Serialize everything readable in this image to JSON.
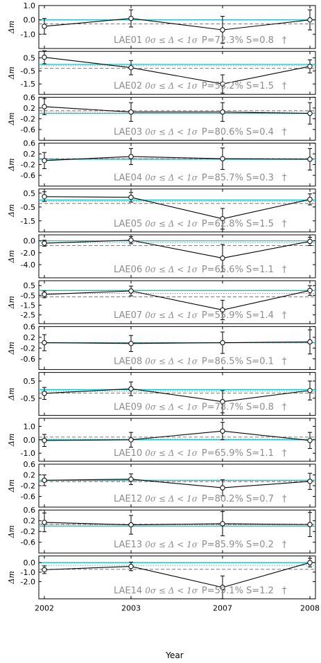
{
  "chart_data": {
    "type": "line",
    "xlabel": "Year",
    "ylabel": "Δm",
    "x_categories": [
      "2002",
      "2003",
      "2007",
      "2008"
    ],
    "colors": {
      "data": "#000000",
      "reference_line": "#00c8c8",
      "dotted_line": "#5f9ea0",
      "dashed_line": "#777777",
      "annotation": "#8c8c8c"
    },
    "panels": [
      {
        "name": "LAE01",
        "range_text": "0σ ≤ Δ < 1σ",
        "stats_text": "P=72.3% S=0.8",
        "dagger": "†",
        "ylim": [
          -2.0,
          1.0
        ],
        "yticks": [
          1.0,
          0.0,
          -1.0
        ],
        "ytick_labels": [
          "1.0",
          "0.0",
          "-1.0"
        ],
        "values": [
          -0.45,
          0.1,
          -0.7,
          0.0
        ],
        "errors": [
          0.55,
          0.6,
          0.95,
          0.7
        ],
        "ref_value": 0.0,
        "dotted_value": 0.0,
        "dashed_value": -0.28
      },
      {
        "name": "LAE02",
        "range_text": "0σ ≤ Δ < 1σ",
        "stats_text": "P=53.2% S=1.5",
        "dagger": "†",
        "ylim": [
          -2.3,
          1.0
        ],
        "yticks": [
          0.5,
          -0.5,
          -1.5
        ],
        "ytick_labels": [
          "0.5",
          "-0.5",
          "-1.5"
        ],
        "values": [
          0.55,
          -0.25,
          -1.5,
          -0.15
        ],
        "errors": [
          0.5,
          0.55,
          0.7,
          0.5
        ],
        "ref_value": 0.0,
        "dotted_value": -0.1,
        "dashed_value": -0.3
      },
      {
        "name": "LAE03",
        "range_text": "0σ ≤ Δ < 1σ",
        "stats_text": "P=80.6% S=0.4",
        "dagger": "†",
        "ylim": [
          -1.0,
          0.6
        ],
        "yticks": [
          0.6,
          0.2,
          -0.2,
          -0.6
        ],
        "ytick_labels": [
          "0.6",
          "0.2",
          "-0.2",
          "-0.6"
        ],
        "values": [
          0.25,
          0.05,
          0.05,
          0.0
        ],
        "errors": [
          0.3,
          0.35,
          0.35,
          0.4
        ],
        "ref_value": 0.0,
        "dotted_value": 0.05,
        "dashed_value": 0.1
      },
      {
        "name": "LAE04",
        "range_text": "0σ ≤ Δ < 1σ",
        "stats_text": "P=85.7% S=0.3",
        "dagger": "†",
        "ylim": [
          -1.0,
          0.6
        ],
        "yticks": [
          0.6,
          0.2,
          -0.2,
          -0.6
        ],
        "ytick_labels": [
          "0.6",
          "0.2",
          "-0.2",
          "-0.6"
        ],
        "values": [
          -0.05,
          0.1,
          0.02,
          0.0
        ],
        "errors": [
          0.3,
          0.3,
          0.4,
          0.4
        ],
        "ref_value": 0.0,
        "dotted_value": 0.02,
        "dashed_value": 0.02
      },
      {
        "name": "LAE05",
        "range_text": "0σ ≤ Δ < 1σ",
        "stats_text": "P=62.8% S=1.5",
        "dagger": "†",
        "ylim": [
          -2.3,
          0.8
        ],
        "yticks": [
          0.5,
          -0.5,
          -1.5
        ],
        "ytick_labels": [
          "0.5",
          "-0.5",
          "-1.5"
        ],
        "values": [
          0.25,
          0.2,
          -1.35,
          0.05
        ],
        "errors": [
          0.35,
          0.35,
          0.75,
          0.4
        ],
        "ref_value": 0.0,
        "dotted_value": -0.1,
        "dashed_value": -0.25
      },
      {
        "name": "LAE06",
        "range_text": "0σ ≤ Δ < 1σ",
        "stats_text": "P=65.6% S=1.1",
        "dagger": "†",
        "ylim": [
          -6.2,
          1.0
        ],
        "yticks": [
          0.0,
          -2.0,
          -4.0
        ],
        "ytick_labels": [
          "0.0",
          "-2.0",
          "-4.0"
        ],
        "values": [
          -0.4,
          0.1,
          -2.9,
          -0.1
        ],
        "errors": [
          0.5,
          0.6,
          2.3,
          0.7
        ],
        "ref_value": 0.0,
        "dotted_value": -0.3,
        "dashed_value": -0.8
      },
      {
        "name": "LAE07",
        "range_text": "0σ ≤ Δ < 1σ",
        "stats_text": "P=55.9% S=1.4",
        "dagger": "†",
        "ylim": [
          -3.4,
          1.0
        ],
        "yticks": [
          0.5,
          -0.5,
          -1.5,
          -2.5
        ],
        "ytick_labels": [
          "0.5",
          "-0.5",
          "-1.5",
          "-2.5"
        ],
        "values": [
          -0.4,
          -0.05,
          -2.0,
          0.0
        ],
        "errors": [
          0.35,
          0.5,
          1.0,
          0.5
        ],
        "ref_value": 0.0,
        "dotted_value": -0.3,
        "dashed_value": -0.65
      },
      {
        "name": "LAE08",
        "range_text": "0σ ≤ Δ < 1σ",
        "stats_text": "P=86.5% S=0.1",
        "dagger": "†",
        "ylim": [
          -1.0,
          0.6
        ],
        "yticks": [
          0.6,
          0.2,
          -0.2,
          -0.6
        ],
        "ytick_labels": [
          "0.6",
          "0.2",
          "-0.2",
          "-0.6"
        ],
        "values": [
          0.0,
          -0.03,
          0.0,
          0.03
        ],
        "errors": [
          0.3,
          0.3,
          0.4,
          0.45
        ],
        "ref_value": 0.0,
        "dotted_value": 0.0,
        "dashed_value": 0.0
      },
      {
        "name": "LAE09",
        "range_text": "0σ ≤ Δ < 1σ",
        "stats_text": "P=78.7% S=0.8",
        "dagger": "†",
        "ylim": [
          -1.5,
          1.0
        ],
        "yticks": [
          0.5,
          -0.5
        ],
        "ytick_labels": [
          "0.5",
          "-0.5"
        ],
        "values": [
          -0.22,
          0.05,
          -0.7,
          -0.05
        ],
        "errors": [
          0.35,
          0.4,
          0.65,
          0.55
        ],
        "ref_value": 0.0,
        "dotted_value": -0.1,
        "dashed_value": -0.2
      },
      {
        "name": "LAE10",
        "range_text": "0σ ≤ Δ < 1σ",
        "stats_text": "P=65.9% S=1.1",
        "dagger": "†",
        "ylim": [
          -1.6,
          1.6
        ],
        "yticks": [
          1.0,
          0.0,
          -1.0
        ],
        "ytick_labels": [
          "1.0",
          "0.0",
          "-1.0"
        ],
        "values": [
          -0.05,
          0.0,
          0.65,
          -0.05
        ],
        "errors": [
          0.45,
          0.55,
          0.65,
          0.6
        ],
        "ref_value": 0.0,
        "dotted_value": 0.05,
        "dashed_value": 0.2
      },
      {
        "name": "LAE12",
        "range_text": "0σ ≤ Δ < 1σ",
        "stats_text": "P=80.2% S=0.7",
        "dagger": "†",
        "ylim": [
          -1.0,
          0.6
        ],
        "yticks": [
          0.6,
          0.2,
          -0.2,
          -0.6
        ],
        "ytick_labels": [
          "0.6",
          "0.2",
          "-0.2",
          "-0.6"
        ],
        "values": [
          0.0,
          0.04,
          -0.28,
          -0.04
        ],
        "errors": [
          0.2,
          0.2,
          0.3,
          0.3
        ],
        "ref_value": 0.0,
        "dotted_value": -0.02,
        "dashed_value": -0.05
      },
      {
        "name": "LAE13",
        "range_text": "0σ ≤ Δ < 1σ",
        "stats_text": "P=85.9% S=0.2",
        "dagger": "†",
        "ylim": [
          -1.0,
          0.6
        ],
        "yticks": [
          0.6,
          0.2,
          -0.2,
          -0.6
        ],
        "ytick_labels": [
          "0.6",
          "0.2",
          "-0.2",
          "-0.6"
        ],
        "values": [
          0.14,
          0.05,
          0.09,
          0.06
        ],
        "errors": [
          0.35,
          0.35,
          0.45,
          0.45
        ],
        "ref_value": 0.0,
        "dotted_value": 0.05,
        "dashed_value": 0.07
      },
      {
        "name": "LAE14",
        "range_text": "0σ ≤ Δ < 1σ",
        "stats_text": "P=59.1% S=1.2",
        "dagger": "†",
        "ylim": [
          -3.8,
          0.7
        ],
        "yticks": [
          0.0,
          -1.0,
          -2.0
        ],
        "ytick_labels": [
          "0.0",
          "-1.0",
          "-2.0"
        ],
        "values": [
          -0.75,
          -0.4,
          -2.6,
          0.0
        ],
        "errors": [
          0.4,
          0.45,
          1.2,
          0.45
        ],
        "ref_value": 0.0,
        "dotted_value": -0.3,
        "dashed_value": -0.7
      }
    ]
  }
}
